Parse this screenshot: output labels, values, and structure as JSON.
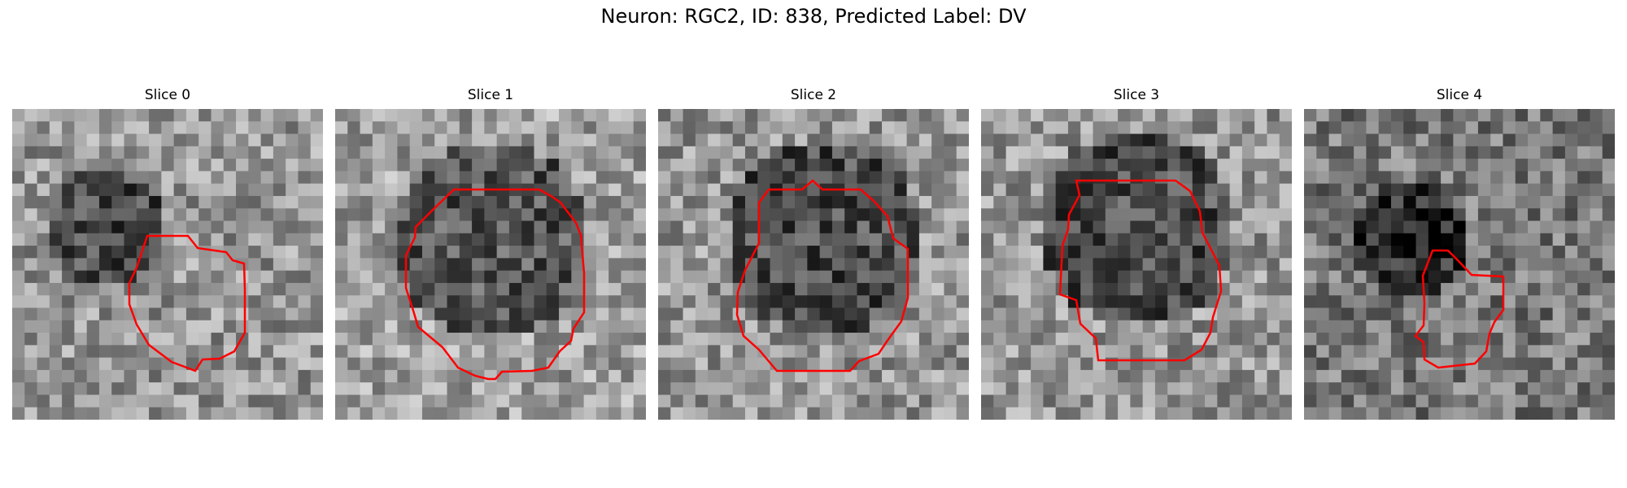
{
  "figure": {
    "title": "Neuron: RGC2, ID: 838, Predicted Label: DV",
    "contour_color": "#ff0000"
  },
  "panels": [
    {
      "title": "Slice 0"
    },
    {
      "title": "Slice 1"
    },
    {
      "title": "Slice 2"
    },
    {
      "title": "Slice 3"
    },
    {
      "title": "Slice 4"
    }
  ]
}
